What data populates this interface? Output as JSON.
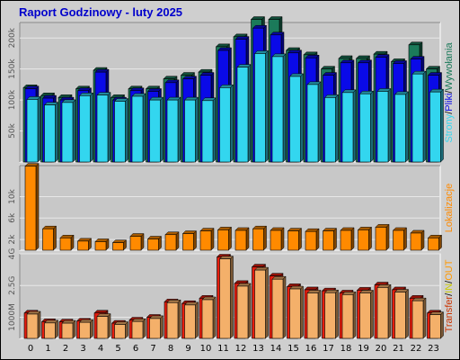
{
  "title": "Raport Godzinowy -  luty 2025",
  "colors": {
    "hits": "#1b7a5a",
    "files": "#0a0ae8",
    "pages": "#33d6ef",
    "sites": "#ff8a00",
    "kbytes_out": "#e51d0e",
    "kbytes_in": "#f4b06a",
    "transfer_label": "#cc3300",
    "in_label": "#cccc00",
    "out_label": "#ff9900"
  },
  "chart_data": [
    {
      "type": "bar",
      "name": "hits_files_pages",
      "categories": [
        "0",
        "1",
        "2",
        "3",
        "4",
        "5",
        "6",
        "7",
        "8",
        "9",
        "10",
        "11",
        "12",
        "13",
        "14",
        "15",
        "16",
        "17",
        "18",
        "19",
        "20",
        "21",
        "22",
        "23"
      ],
      "ylim": [
        0,
        225000
      ],
      "ytick_labels": [
        "50k",
        "100k",
        "150k",
        "200k"
      ],
      "ytick_values": [
        50000,
        100000,
        150000,
        200000
      ],
      "right_label_parts": [
        "Strony",
        "/",
        "Pliki",
        "/",
        "Wywołania"
      ],
      "series": [
        {
          "name": "Wywołania",
          "values": [
            120000,
            107000,
            104000,
            118000,
            148000,
            104000,
            118000,
            118000,
            134000,
            140000,
            145000,
            186000,
            202000,
            230000,
            230000,
            180000,
            173000,
            150000,
            167000,
            167000,
            174000,
            162000,
            189000,
            150000
          ]
        },
        {
          "name": "Pliki",
          "values": [
            118000,
            103000,
            100000,
            115000,
            145000,
            100000,
            115000,
            114000,
            128000,
            134000,
            140000,
            180000,
            198000,
            216000,
            205000,
            176000,
            168000,
            140000,
            160000,
            160000,
            169000,
            159000,
            166000,
            140000
          ]
        },
        {
          "name": "Strony",
          "values": [
            101000,
            92000,
            96000,
            107000,
            108000,
            98000,
            106000,
            100000,
            100000,
            100000,
            99000,
            120000,
            153000,
            175000,
            170000,
            138000,
            125000,
            104000,
            112000,
            110000,
            114000,
            109000,
            142000,
            113000
          ]
        }
      ]
    },
    {
      "type": "bar",
      "name": "sites",
      "categories": [
        "0",
        "1",
        "2",
        "3",
        "4",
        "5",
        "6",
        "7",
        "8",
        "9",
        "10",
        "11",
        "12",
        "13",
        "14",
        "15",
        "16",
        "17",
        "18",
        "19",
        "20",
        "21",
        "22",
        "23"
      ],
      "ylim": [
        0,
        15800
      ],
      "ytick_labels": [
        "2k",
        "6k",
        "10k"
      ],
      "ytick_values": [
        2000,
        6000,
        10000
      ],
      "right_label_parts": [
        "Lokalizacje"
      ],
      "series": [
        {
          "name": "Lokalizacje",
          "values": [
            15700,
            4000,
            2300,
            1700,
            1600,
            1400,
            2600,
            2100,
            2900,
            3100,
            3600,
            3800,
            3700,
            4000,
            3700,
            3600,
            3500,
            3600,
            3700,
            3800,
            4300,
            3700,
            3200,
            2300
          ]
        }
      ]
    },
    {
      "type": "bar",
      "name": "kbytes",
      "categories": [
        "0",
        "1",
        "2",
        "3",
        "4",
        "5",
        "6",
        "7",
        "8",
        "9",
        "10",
        "11",
        "12",
        "13",
        "14",
        "15",
        "16",
        "17",
        "18",
        "19",
        "20",
        "21",
        "22",
        "23"
      ],
      "ylim": [
        0,
        4000
      ],
      "ytick_labels": [
        "1000M",
        "2.5G",
        "4G"
      ],
      "ytick_values": [
        1000,
        2500,
        4000
      ],
      "right_label_parts": [
        "Transfer",
        "/",
        "IN",
        "/",
        "OUT"
      ],
      "series": [
        {
          "name": "Transfer",
          "values": [
            1200,
            790,
            780,
            820,
            1200,
            720,
            870,
            1000,
            1730,
            1650,
            1900,
            3850,
            2600,
            3380,
            2950,
            2450,
            2300,
            2250,
            2150,
            2280,
            2530,
            2300,
            1900,
            1200
          ]
        },
        {
          "name": "OUT",
          "values": [
            1150,
            730,
            720,
            760,
            1040,
            660,
            800,
            940,
            1690,
            1580,
            1830,
            3760,
            2470,
            3230,
            2800,
            2340,
            2150,
            2160,
            2070,
            2150,
            2410,
            2190,
            1780,
            1120
          ]
        }
      ]
    }
  ]
}
